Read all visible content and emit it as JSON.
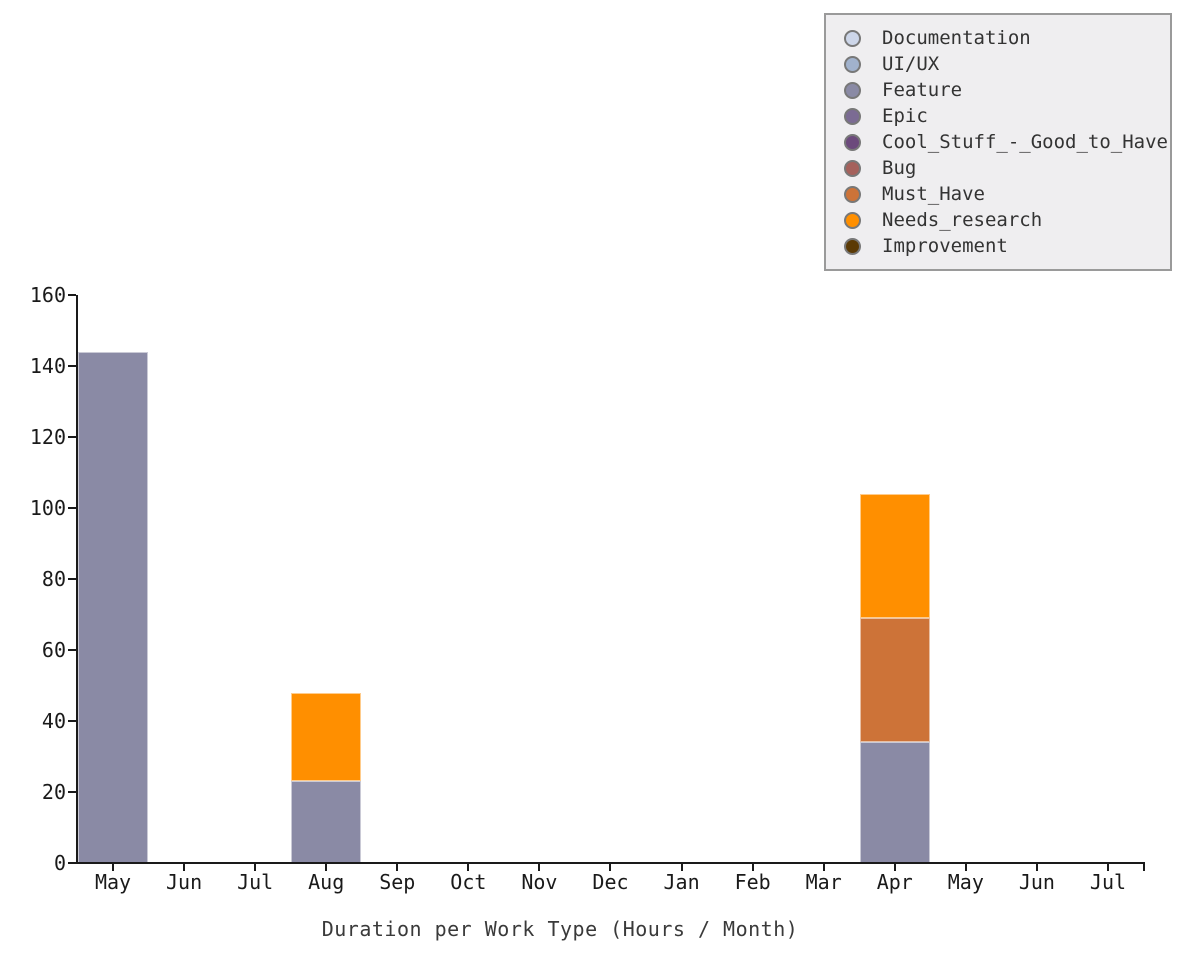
{
  "figure": {
    "background": "#ffffff",
    "axis_color": "#1a1a1a",
    "text_color": "#333333"
  },
  "legend": {
    "background": "#efeef0",
    "border_color": "#9a9a9a",
    "marker_shape": "circle",
    "position": "top-right"
  },
  "chart_data": {
    "type": "bar",
    "stacked": true,
    "title": "",
    "xlabel": "Duration per Work Type (Hours / Month)",
    "ylabel": "",
    "ylim": [
      0,
      160
    ],
    "ytick_interval": 20,
    "ytick_labels": [
      "0",
      "20",
      "40",
      "60",
      "80",
      "100",
      "120",
      "140",
      "160"
    ],
    "grid": false,
    "legend_position": "top-right",
    "categories": [
      "May",
      "Jun",
      "Jul",
      "Aug",
      "Sep",
      "Oct",
      "Nov",
      "Dec",
      "Jan",
      "Feb",
      "Mar",
      "Apr",
      "May",
      "Jun",
      "Jul"
    ],
    "series": [
      {
        "name": "Documentation",
        "color": "#cdd6e9",
        "values": [
          0,
          0,
          0,
          0,
          0,
          0,
          0,
          0,
          0,
          0,
          0,
          0,
          0,
          0,
          0
        ]
      },
      {
        "name": "UI/UX",
        "color": "#a1b2cd",
        "values": [
          0,
          0,
          0,
          0,
          0,
          0,
          0,
          0,
          0,
          0,
          0,
          0,
          0,
          0,
          0
        ]
      },
      {
        "name": "Feature",
        "color": "#8a8aa5",
        "values": [
          144,
          0,
          0,
          23,
          0,
          0,
          0,
          0,
          0,
          0,
          0,
          34,
          0,
          0,
          0
        ]
      },
      {
        "name": "Epic",
        "color": "#7b6b93",
        "values": [
          0,
          0,
          0,
          0,
          0,
          0,
          0,
          0,
          0,
          0,
          0,
          0,
          0,
          0,
          0
        ]
      },
      {
        "name": "Cool_Stuff_-_Good_to_Have",
        "color": "#6c4a7c",
        "values": [
          0,
          0,
          0,
          0,
          0,
          0,
          0,
          0,
          0,
          0,
          0,
          0,
          0,
          0,
          0
        ]
      },
      {
        "name": "Bug",
        "color": "#a5615c",
        "values": [
          0,
          0,
          0,
          0,
          0,
          0,
          0,
          0,
          0,
          0,
          0,
          0,
          0,
          0,
          0
        ]
      },
      {
        "name": "Must_Have",
        "color": "#cd7338",
        "values": [
          0,
          0,
          0,
          0,
          0,
          0,
          0,
          0,
          0,
          0,
          0,
          35,
          0,
          0,
          0
        ]
      },
      {
        "name": "Needs_research",
        "color": "#ff8f00",
        "values": [
          0,
          0,
          0,
          25,
          0,
          0,
          0,
          0,
          0,
          0,
          0,
          35,
          0,
          0,
          0
        ]
      },
      {
        "name": "Improvement",
        "color": "#5b3a05",
        "values": [
          0,
          0,
          0,
          0,
          0,
          0,
          0,
          0,
          0,
          0,
          0,
          0,
          0,
          0,
          0
        ]
      }
    ],
    "stack_totals": {
      "May": 144,
      "Aug": 48,
      "Apr": 104
    }
  }
}
